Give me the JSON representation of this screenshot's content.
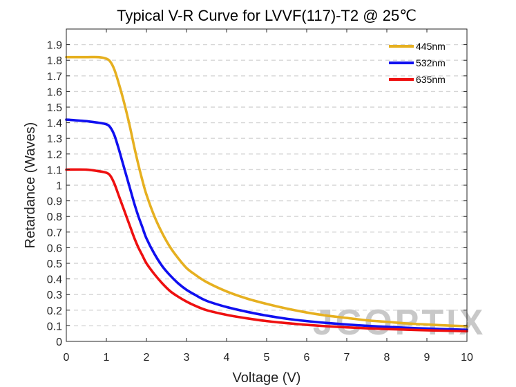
{
  "chart_data": {
    "type": "line",
    "title": "Typical V-R Curve for LVVF(117)-T2 @ 25℃",
    "xlabel": "Voltage (V)",
    "ylabel": "Retardance (Waves)",
    "xlim": [
      0,
      10
    ],
    "ylim": [
      0,
      2.0
    ],
    "xticks": [
      0,
      1,
      2,
      3,
      4,
      5,
      6,
      7,
      8,
      9,
      10
    ],
    "yticks": [
      0,
      0.1,
      0.2,
      0.3,
      0.4,
      0.5,
      0.6,
      0.7,
      0.8,
      0.9,
      1,
      1.1,
      1.2,
      1.3,
      1.4,
      1.5,
      1.6,
      1.7,
      1.8,
      1.9
    ],
    "ytick_labels": [
      "0",
      "0.1",
      "0.2",
      "0.3",
      "0.4",
      "0.5",
      "0.6",
      "0.7",
      "0.8",
      "0.9",
      "1",
      "1.1",
      "1.2",
      "1.3",
      "1.4",
      "1.5",
      "1.6",
      "1.7",
      "1.8",
      "1.9"
    ],
    "grid": "horizontal-dashed",
    "legend_position": "top-right",
    "series": [
      {
        "name": "445nm",
        "color": "#E6B020",
        "x": [
          0,
          0.5,
          0.8,
          1.0,
          1.1,
          1.2,
          1.3,
          1.4,
          1.5,
          1.6,
          1.7,
          1.8,
          1.9,
          2.0,
          2.2,
          2.4,
          2.6,
          2.8,
          3.0,
          3.2,
          3.5,
          4.0,
          4.5,
          5.0,
          5.5,
          6.0,
          6.5,
          7.0,
          7.5,
          8.0,
          8.5,
          9.0,
          9.5,
          10.0
        ],
        "y": [
          1.82,
          1.82,
          1.82,
          1.81,
          1.79,
          1.74,
          1.66,
          1.57,
          1.47,
          1.36,
          1.24,
          1.13,
          1.03,
          0.94,
          0.8,
          0.69,
          0.6,
          0.53,
          0.47,
          0.43,
          0.38,
          0.32,
          0.275,
          0.24,
          0.21,
          0.185,
          0.165,
          0.15,
          0.135,
          0.125,
          0.115,
          0.108,
          0.102,
          0.097
        ]
      },
      {
        "name": "532nm",
        "color": "#1010F0",
        "x": [
          0,
          0.5,
          0.8,
          1.0,
          1.1,
          1.2,
          1.3,
          1.4,
          1.5,
          1.6,
          1.7,
          1.8,
          1.9,
          2.0,
          2.2,
          2.4,
          2.6,
          2.8,
          3.0,
          3.2,
          3.5,
          4.0,
          4.5,
          5.0,
          5.5,
          6.0,
          6.5,
          7.0,
          7.5,
          8.0,
          8.5,
          9.0,
          9.5,
          10.0
        ],
        "y": [
          1.42,
          1.41,
          1.4,
          1.39,
          1.37,
          1.32,
          1.24,
          1.15,
          1.06,
          0.97,
          0.88,
          0.8,
          0.73,
          0.66,
          0.56,
          0.48,
          0.42,
          0.37,
          0.33,
          0.3,
          0.26,
          0.22,
          0.19,
          0.165,
          0.145,
          0.13,
          0.118,
          0.108,
          0.1,
          0.093,
          0.087,
          0.082,
          0.078,
          0.074
        ]
      },
      {
        "name": "635nm",
        "color": "#EE1010",
        "x": [
          0,
          0.5,
          0.8,
          1.0,
          1.1,
          1.2,
          1.3,
          1.4,
          1.5,
          1.6,
          1.7,
          1.8,
          1.9,
          2.0,
          2.2,
          2.4,
          2.6,
          2.8,
          3.0,
          3.2,
          3.5,
          4.0,
          4.5,
          5.0,
          5.5,
          6.0,
          6.5,
          7.0,
          7.5,
          8.0,
          8.5,
          9.0,
          9.5,
          10.0
        ],
        "y": [
          1.1,
          1.1,
          1.09,
          1.08,
          1.06,
          1.01,
          0.94,
          0.87,
          0.8,
          0.73,
          0.66,
          0.6,
          0.55,
          0.5,
          0.43,
          0.37,
          0.32,
          0.285,
          0.255,
          0.23,
          0.2,
          0.17,
          0.148,
          0.13,
          0.117,
          0.106,
          0.097,
          0.09,
          0.084,
          0.079,
          0.075,
          0.071,
          0.068,
          0.065
        ]
      }
    ]
  },
  "watermark_text": "JCOPTIX"
}
